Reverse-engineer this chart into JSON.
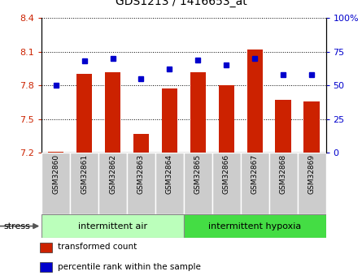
{
  "title": "GDS1213 / 1416653_at",
  "samples": [
    "GSM32860",
    "GSM32861",
    "GSM32862",
    "GSM32863",
    "GSM32864",
    "GSM32865",
    "GSM32866",
    "GSM32867",
    "GSM32868",
    "GSM32869"
  ],
  "transformed_counts": [
    7.21,
    7.9,
    7.92,
    7.37,
    7.77,
    7.92,
    7.8,
    8.12,
    7.67,
    7.66
  ],
  "percentile_ranks": [
    50,
    68,
    70,
    55,
    62,
    69,
    65,
    70,
    58,
    58
  ],
  "ylim_left": [
    7.2,
    8.4
  ],
  "ylim_right": [
    0,
    100
  ],
  "yticks_left": [
    7.2,
    7.5,
    7.8,
    8.1,
    8.4
  ],
  "yticks_right": [
    0,
    25,
    50,
    75,
    100
  ],
  "ytick_labels_left": [
    "7.2",
    "7.5",
    "7.8",
    "8.1",
    "8.4"
  ],
  "ytick_labels_right": [
    "0",
    "25",
    "50",
    "75",
    "100%"
  ],
  "bar_color": "#cc2200",
  "dot_color": "#0000cc",
  "bar_bottom": 7.2,
  "groups": [
    {
      "label": "intermittent air",
      "start": 0,
      "end": 4,
      "color": "#bbffbb"
    },
    {
      "label": "intermittent hypoxia",
      "start": 5,
      "end": 9,
      "color": "#44dd44"
    }
  ],
  "stress_label": "stress",
  "legend": [
    {
      "color": "#cc2200",
      "label": "transformed count"
    },
    {
      "color": "#0000cc",
      "label": "percentile rank within the sample"
    }
  ],
  "tick_label_bg": "#cccccc",
  "fig_width": 4.45,
  "fig_height": 3.45,
  "dpi": 100
}
